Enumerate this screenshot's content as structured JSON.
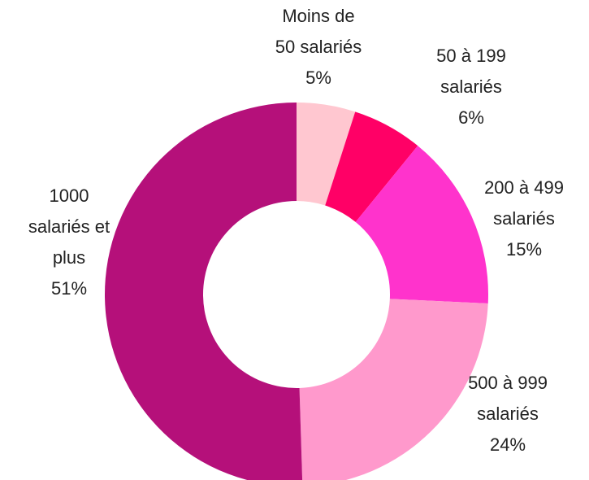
{
  "chart_data": {
    "type": "donut",
    "categories": [
      "Moins de 50 salariés",
      "50 à 199 salariés",
      "200 à 499 salariés",
      "500 à 999 salariés",
      "1000 salariés et plus"
    ],
    "values": [
      5,
      6,
      15,
      24,
      51
    ],
    "value_labels": [
      "5%",
      "6%",
      "15%",
      "24%",
      "51%"
    ],
    "colors": [
      "#ffc7d0",
      "#ff0066",
      "#ff33cc",
      "#ff99cc",
      "#b5107a"
    ]
  }
}
